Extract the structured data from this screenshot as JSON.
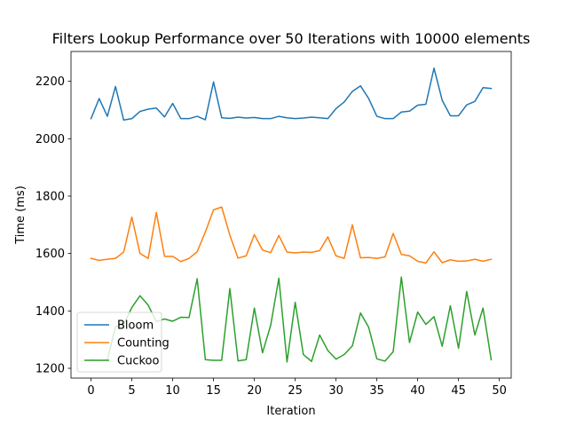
{
  "chart_data": {
    "type": "line",
    "title": "Filters Lookup Performance over 50 Iterations with 10000 elements",
    "xlabel": "Iteration",
    "ylabel": "Time (ms)",
    "xlim": [
      -2.45,
      51.45
    ],
    "ylim": [
      1166,
      2304
    ],
    "xticks": [
      0,
      5,
      10,
      15,
      20,
      25,
      30,
      35,
      40,
      45,
      50
    ],
    "yticks": [
      1200,
      1400,
      1600,
      1800,
      2000,
      2200
    ],
    "grid": false,
    "legend_position": "lower-left",
    "x": [
      0,
      1,
      2,
      3,
      4,
      5,
      6,
      7,
      8,
      9,
      10,
      11,
      12,
      13,
      14,
      15,
      16,
      17,
      18,
      19,
      20,
      21,
      22,
      23,
      24,
      25,
      26,
      27,
      28,
      29,
      30,
      31,
      32,
      33,
      34,
      35,
      36,
      37,
      38,
      39,
      40,
      41,
      42,
      43,
      44,
      45,
      46,
      47,
      48,
      49
    ],
    "series": [
      {
        "name": "Bloom",
        "color": "#1f77b4",
        "values": [
          2070,
          2140,
          2078,
          2182,
          2065,
          2070,
          2095,
          2103,
          2107,
          2076,
          2123,
          2070,
          2070,
          2078,
          2066,
          2198,
          2073,
          2071,
          2075,
          2072,
          2074,
          2070,
          2070,
          2078,
          2073,
          2070,
          2072,
          2075,
          2073,
          2070,
          2105,
          2128,
          2165,
          2184,
          2140,
          2078,
          2070,
          2070,
          2093,
          2096,
          2117,
          2120,
          2246,
          2134,
          2080,
          2080,
          2118,
          2130,
          2178,
          2175
        ]
      },
      {
        "name": "Counting",
        "color": "#ff7f0e",
        "values": [
          1583,
          1576,
          1580,
          1583,
          1605,
          1727,
          1600,
          1583,
          1743,
          1590,
          1590,
          1572,
          1583,
          1606,
          1675,
          1752,
          1762,
          1664,
          1584,
          1592,
          1666,
          1612,
          1603,
          1663,
          1605,
          1602,
          1605,
          1604,
          1610,
          1658,
          1592,
          1583,
          1700,
          1585,
          1586,
          1583,
          1588,
          1670,
          1597,
          1592,
          1573,
          1567,
          1606,
          1568,
          1578,
          1573,
          1574,
          1580,
          1573,
          1580
        ]
      },
      {
        "name": "Cuckoo",
        "color": "#2ca02c",
        "values": [
          1230,
          1228,
          1230,
          1345,
          1352,
          1412,
          1453,
          1420,
          1363,
          1372,
          1364,
          1378,
          1377,
          1512,
          1230,
          1228,
          1228,
          1478,
          1226,
          1230,
          1410,
          1254,
          1350,
          1514,
          1222,
          1430,
          1248,
          1224,
          1316,
          1262,
          1232,
          1248,
          1278,
          1393,
          1343,
          1233,
          1225,
          1258,
          1518,
          1290,
          1396,
          1353,
          1380,
          1277,
          1418,
          1270,
          1468,
          1316,
          1410,
          1230
        ]
      }
    ]
  }
}
